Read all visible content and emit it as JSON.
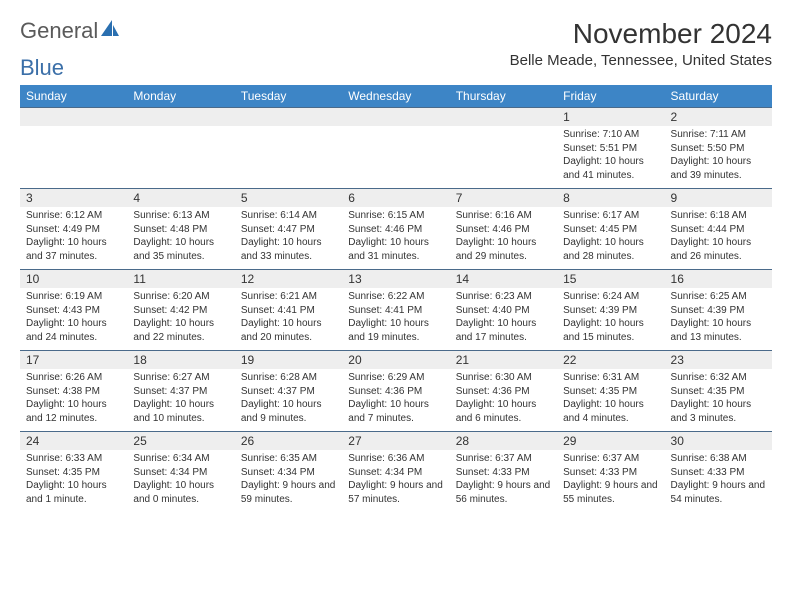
{
  "logo": {
    "text1": "General",
    "text2": "Blue"
  },
  "title": "November 2024",
  "location": "Belle Meade, Tennessee, United States",
  "colors": {
    "header_bg": "#3d85c6",
    "header_fg": "#ffffff",
    "daynum_bg": "#eeeeee",
    "border": "#4a6a8a",
    "logo_accent": "#2a6fb0"
  },
  "day_headers": [
    "Sunday",
    "Monday",
    "Tuesday",
    "Wednesday",
    "Thursday",
    "Friday",
    "Saturday"
  ],
  "weeks": [
    [
      null,
      null,
      null,
      null,
      null,
      {
        "n": "1",
        "sr": "Sunrise: 7:10 AM",
        "ss": "Sunset: 5:51 PM",
        "dl": "Daylight: 10 hours and 41 minutes."
      },
      {
        "n": "2",
        "sr": "Sunrise: 7:11 AM",
        "ss": "Sunset: 5:50 PM",
        "dl": "Daylight: 10 hours and 39 minutes."
      }
    ],
    [
      {
        "n": "3",
        "sr": "Sunrise: 6:12 AM",
        "ss": "Sunset: 4:49 PM",
        "dl": "Daylight: 10 hours and 37 minutes."
      },
      {
        "n": "4",
        "sr": "Sunrise: 6:13 AM",
        "ss": "Sunset: 4:48 PM",
        "dl": "Daylight: 10 hours and 35 minutes."
      },
      {
        "n": "5",
        "sr": "Sunrise: 6:14 AM",
        "ss": "Sunset: 4:47 PM",
        "dl": "Daylight: 10 hours and 33 minutes."
      },
      {
        "n": "6",
        "sr": "Sunrise: 6:15 AM",
        "ss": "Sunset: 4:46 PM",
        "dl": "Daylight: 10 hours and 31 minutes."
      },
      {
        "n": "7",
        "sr": "Sunrise: 6:16 AM",
        "ss": "Sunset: 4:46 PM",
        "dl": "Daylight: 10 hours and 29 minutes."
      },
      {
        "n": "8",
        "sr": "Sunrise: 6:17 AM",
        "ss": "Sunset: 4:45 PM",
        "dl": "Daylight: 10 hours and 28 minutes."
      },
      {
        "n": "9",
        "sr": "Sunrise: 6:18 AM",
        "ss": "Sunset: 4:44 PM",
        "dl": "Daylight: 10 hours and 26 minutes."
      }
    ],
    [
      {
        "n": "10",
        "sr": "Sunrise: 6:19 AM",
        "ss": "Sunset: 4:43 PM",
        "dl": "Daylight: 10 hours and 24 minutes."
      },
      {
        "n": "11",
        "sr": "Sunrise: 6:20 AM",
        "ss": "Sunset: 4:42 PM",
        "dl": "Daylight: 10 hours and 22 minutes."
      },
      {
        "n": "12",
        "sr": "Sunrise: 6:21 AM",
        "ss": "Sunset: 4:41 PM",
        "dl": "Daylight: 10 hours and 20 minutes."
      },
      {
        "n": "13",
        "sr": "Sunrise: 6:22 AM",
        "ss": "Sunset: 4:41 PM",
        "dl": "Daylight: 10 hours and 19 minutes."
      },
      {
        "n": "14",
        "sr": "Sunrise: 6:23 AM",
        "ss": "Sunset: 4:40 PM",
        "dl": "Daylight: 10 hours and 17 minutes."
      },
      {
        "n": "15",
        "sr": "Sunrise: 6:24 AM",
        "ss": "Sunset: 4:39 PM",
        "dl": "Daylight: 10 hours and 15 minutes."
      },
      {
        "n": "16",
        "sr": "Sunrise: 6:25 AM",
        "ss": "Sunset: 4:39 PM",
        "dl": "Daylight: 10 hours and 13 minutes."
      }
    ],
    [
      {
        "n": "17",
        "sr": "Sunrise: 6:26 AM",
        "ss": "Sunset: 4:38 PM",
        "dl": "Daylight: 10 hours and 12 minutes."
      },
      {
        "n": "18",
        "sr": "Sunrise: 6:27 AM",
        "ss": "Sunset: 4:37 PM",
        "dl": "Daylight: 10 hours and 10 minutes."
      },
      {
        "n": "19",
        "sr": "Sunrise: 6:28 AM",
        "ss": "Sunset: 4:37 PM",
        "dl": "Daylight: 10 hours and 9 minutes."
      },
      {
        "n": "20",
        "sr": "Sunrise: 6:29 AM",
        "ss": "Sunset: 4:36 PM",
        "dl": "Daylight: 10 hours and 7 minutes."
      },
      {
        "n": "21",
        "sr": "Sunrise: 6:30 AM",
        "ss": "Sunset: 4:36 PM",
        "dl": "Daylight: 10 hours and 6 minutes."
      },
      {
        "n": "22",
        "sr": "Sunrise: 6:31 AM",
        "ss": "Sunset: 4:35 PM",
        "dl": "Daylight: 10 hours and 4 minutes."
      },
      {
        "n": "23",
        "sr": "Sunrise: 6:32 AM",
        "ss": "Sunset: 4:35 PM",
        "dl": "Daylight: 10 hours and 3 minutes."
      }
    ],
    [
      {
        "n": "24",
        "sr": "Sunrise: 6:33 AM",
        "ss": "Sunset: 4:35 PM",
        "dl": "Daylight: 10 hours and 1 minute."
      },
      {
        "n": "25",
        "sr": "Sunrise: 6:34 AM",
        "ss": "Sunset: 4:34 PM",
        "dl": "Daylight: 10 hours and 0 minutes."
      },
      {
        "n": "26",
        "sr": "Sunrise: 6:35 AM",
        "ss": "Sunset: 4:34 PM",
        "dl": "Daylight: 9 hours and 59 minutes."
      },
      {
        "n": "27",
        "sr": "Sunrise: 6:36 AM",
        "ss": "Sunset: 4:34 PM",
        "dl": "Daylight: 9 hours and 57 minutes."
      },
      {
        "n": "28",
        "sr": "Sunrise: 6:37 AM",
        "ss": "Sunset: 4:33 PM",
        "dl": "Daylight: 9 hours and 56 minutes."
      },
      {
        "n": "29",
        "sr": "Sunrise: 6:37 AM",
        "ss": "Sunset: 4:33 PM",
        "dl": "Daylight: 9 hours and 55 minutes."
      },
      {
        "n": "30",
        "sr": "Sunrise: 6:38 AM",
        "ss": "Sunset: 4:33 PM",
        "dl": "Daylight: 9 hours and 54 minutes."
      }
    ]
  ]
}
